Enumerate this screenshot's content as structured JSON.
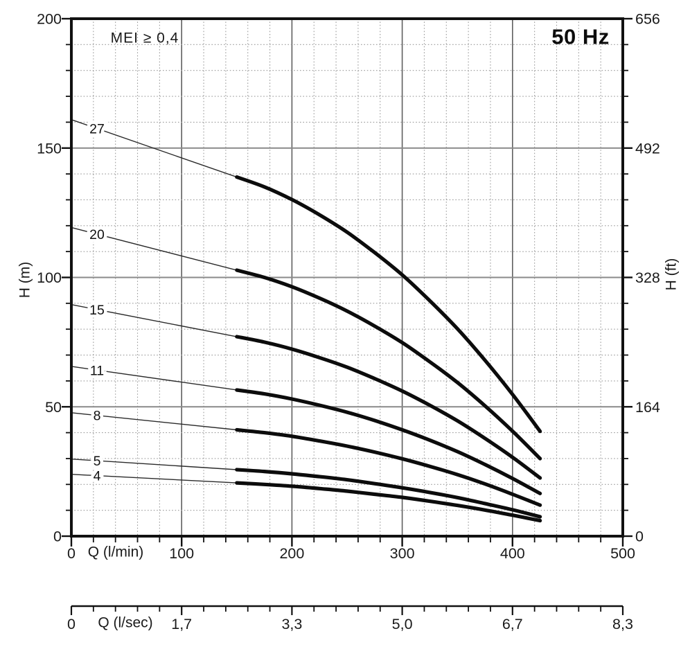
{
  "chart_data": {
    "type": "line",
    "title": "",
    "annotations": {
      "mei": "MEI ≥ 0,4",
      "frequency": "50 Hz"
    },
    "x_axis": {
      "label": "Q (l/min)",
      "min": 0,
      "max": 500,
      "major_tick_step": 100,
      "minor_tick_step": 20,
      "tick_labels": [
        "0",
        "100",
        "200",
        "300",
        "400",
        "500"
      ]
    },
    "y_axis_left": {
      "label": "H (m)",
      "min": 0,
      "max": 200,
      "major_tick_step": 50,
      "minor_tick_step": 10,
      "tick_labels": [
        "0",
        "50",
        "100",
        "150",
        "200"
      ]
    },
    "y_axis_right": {
      "label": "H (ft)",
      "minor_tick_step_m": 10,
      "ticks": [
        {
          "at_m": 0,
          "label": "0"
        },
        {
          "at_m": 50,
          "label": "164"
        },
        {
          "at_m": 100,
          "label": "328"
        },
        {
          "at_m": 150,
          "label": "492"
        },
        {
          "at_m": 200,
          "label": "656"
        }
      ]
    },
    "x_axis_secondary": {
      "label": "Q (l/sec)",
      "minor_tick_step_lmin": 20,
      "ticks": [
        {
          "at_lmin": 0,
          "label": "0"
        },
        {
          "at_lmin": 100,
          "label": "1,7"
        },
        {
          "at_lmin": 200,
          "label": "3,3"
        },
        {
          "at_lmin": 300,
          "label": "5,0"
        },
        {
          "at_lmin": 400,
          "label": "6,7"
        },
        {
          "at_lmin": 500,
          "label": "8,3"
        }
      ]
    },
    "grid": {
      "shown": true,
      "minor_x_step": 20,
      "minor_y_step": 10
    },
    "colors": {
      "curve": "#0c0c0c",
      "frame": "#111111",
      "grid_minor": "#9b9b9b",
      "grid_major_v": "#5f5f5f",
      "grid_major_h": "#8a8a8a",
      "text": "#1a1a1a",
      "leader": "#2a2a2a"
    },
    "q_lmin": [
      150,
      175,
      200,
      225,
      250,
      275,
      300,
      325,
      350,
      375,
      400,
      425
    ],
    "series": [
      {
        "name": "27",
        "stages": 27,
        "leader_head_at_q0_m": 161.0,
        "head_m": [
          138.8,
          135.0,
          130.1,
          124.2,
          117.5,
          109.6,
          101.0,
          91.0,
          80.2,
          68.0,
          54.8,
          40.5
        ]
      },
      {
        "name": "20",
        "stages": 20,
        "leader_head_at_q0_m": 119.3,
        "head_m": [
          102.8,
          100.0,
          96.4,
          92.0,
          87.0,
          81.2,
          74.8,
          67.4,
          59.4,
          50.4,
          40.6,
          30.0
        ]
      },
      {
        "name": "15",
        "stages": 15,
        "leader_head_at_q0_m": 89.5,
        "head_m": [
          77.1,
          75.0,
          72.3,
          69.0,
          65.3,
          60.9,
          56.1,
          50.6,
          44.6,
          37.8,
          30.5,
          22.5
        ]
      },
      {
        "name": "11",
        "stages": 11,
        "leader_head_at_q0_m": 65.6,
        "head_m": [
          56.5,
          55.0,
          53.0,
          50.6,
          47.9,
          44.7,
          41.1,
          37.1,
          32.7,
          27.7,
          22.3,
          16.5
        ]
      },
      {
        "name": "8",
        "stages": 8,
        "leader_head_at_q0_m": 47.7,
        "head_m": [
          41.1,
          40.0,
          38.6,
          36.8,
          34.8,
          32.5,
          29.9,
          27.0,
          23.8,
          20.2,
          16.2,
          12.0
        ]
      },
      {
        "name": "5",
        "stages": 5,
        "leader_head_at_q0_m": 29.8,
        "head_m": [
          25.7,
          25.0,
          24.1,
          23.0,
          21.8,
          20.3,
          18.7,
          16.9,
          14.9,
          12.6,
          10.2,
          7.5
        ]
      },
      {
        "name": "4",
        "stages": 4,
        "leader_head_at_q0_m": 23.9,
        "head_m": [
          20.6,
          20.0,
          19.3,
          18.4,
          17.4,
          16.2,
          15.0,
          13.5,
          11.9,
          10.1,
          8.1,
          6.0
        ]
      }
    ]
  }
}
